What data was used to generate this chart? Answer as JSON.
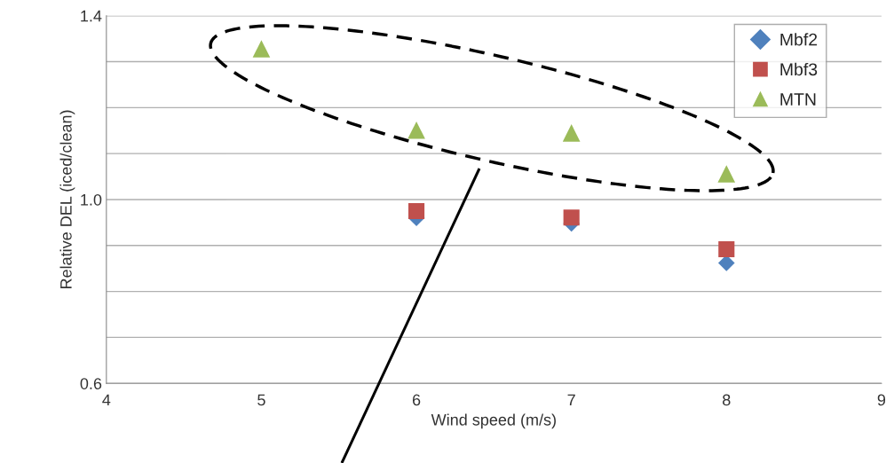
{
  "chart_data": {
    "type": "scatter",
    "xlabel": "Wind speed (m/s)",
    "ylabel": "Relative DEL (iced/clean)",
    "xlim": [
      4,
      9
    ],
    "xticks": [
      4,
      5,
      6,
      7,
      8,
      9
    ],
    "ylim": [
      0.6,
      1.4
    ],
    "yticks": [
      0.6,
      {
        "value": 0.7,
        "label": null
      },
      {
        "value": 0.8,
        "label": null
      },
      {
        "value": 0.9,
        "label": null
      },
      {
        "value": 1.0,
        "label": "1.0"
      },
      {
        "value": 1.1,
        "label": null
      },
      {
        "value": 1.2,
        "label": null
      },
      {
        "value": 1.3,
        "label": null
      },
      1.4
    ],
    "grid": "y",
    "legend": "top right",
    "series": [
      {
        "name": "Mbf2",
        "color": "#4f81bd",
        "marker": "diamond",
        "x": [
          6,
          7,
          8
        ],
        "values": [
          0.96,
          0.948,
          0.862
        ]
      },
      {
        "name": "Mbf3",
        "color": "#c0504d",
        "marker": "square",
        "x": [
          6,
          7,
          8
        ],
        "values": [
          0.975,
          0.961,
          0.892
        ]
      },
      {
        "name": "MTN",
        "color": "#9bbb59",
        "marker": "triangle",
        "x": [
          5,
          6,
          7,
          8
        ],
        "values": [
          1.328,
          1.151,
          1.145,
          1.056
        ]
      }
    ]
  }
}
